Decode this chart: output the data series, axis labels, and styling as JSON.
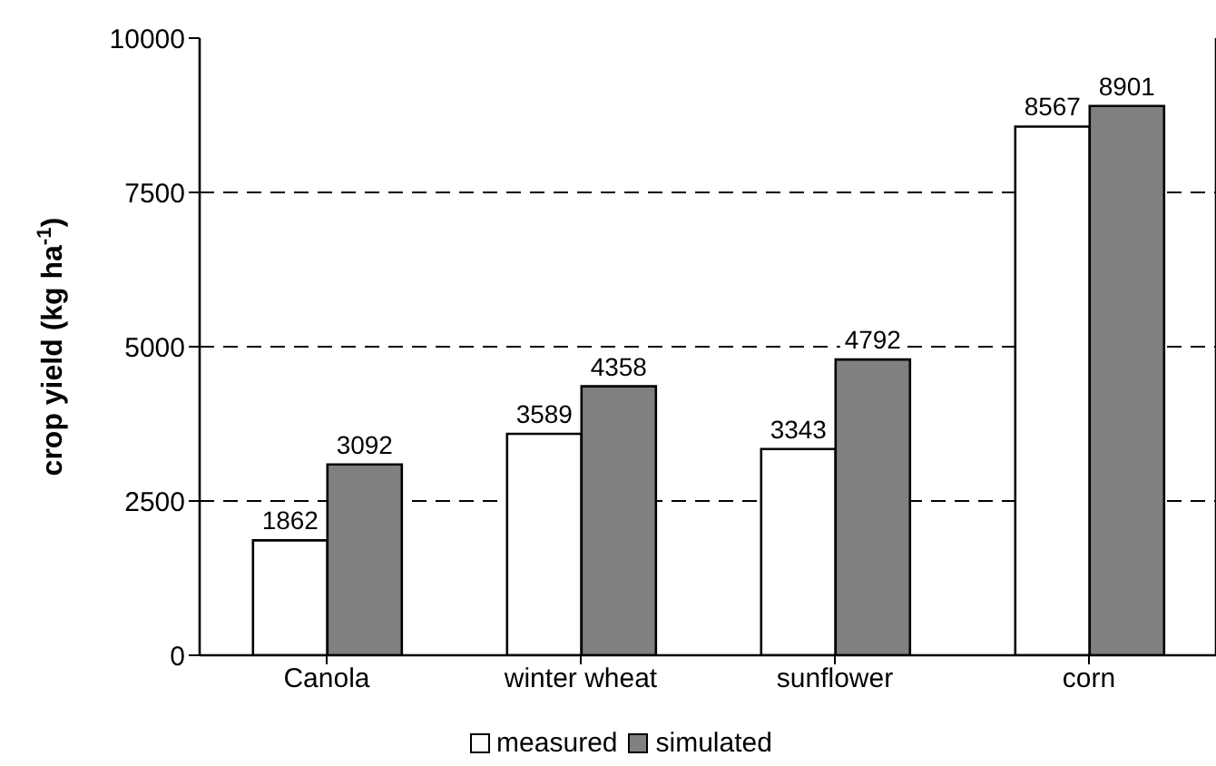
{
  "chart_data": {
    "type": "bar",
    "ylabel": "crop yield (kg ha$^{-1}$)",
    "categories": [
      "Canola",
      "winter wheat",
      "sunflower",
      "corn"
    ],
    "series": [
      {
        "name": "measured",
        "color": "#ffffff",
        "values": [
          1862,
          3589,
          3343,
          8567
        ]
      },
      {
        "name": "simulated",
        "color": "#808080",
        "values": [
          3092,
          4358,
          4792,
          8901
        ]
      }
    ],
    "ylim": [
      0,
      10000
    ],
    "yticks": [
      0,
      2500,
      5000,
      7500,
      10000
    ],
    "grid": "y",
    "legend": "bottom",
    "data_labels": true
  }
}
